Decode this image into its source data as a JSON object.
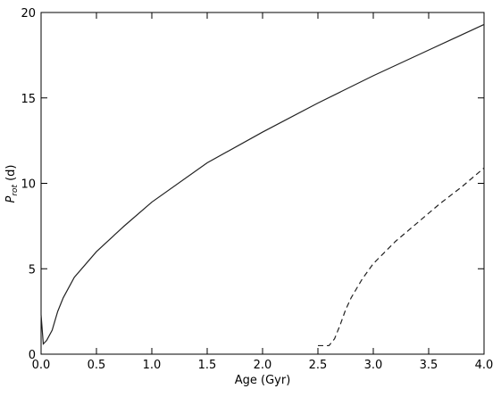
{
  "chart_data": {
    "type": "line",
    "xlabel": "Age (Gyr)",
    "ylabel": {
      "symbol": "P",
      "subscript": "rot",
      "unit": "(d)"
    },
    "xlim": [
      0,
      4
    ],
    "ylim": [
      0,
      20
    ],
    "xticks": [
      {
        "value": 0,
        "label": "0.0"
      },
      0.5,
      {
        "value": 1,
        "label": "1.0"
      },
      1.5,
      {
        "value": 2,
        "label": "2.0"
      },
      2.5,
      {
        "value": 3,
        "label": "3.0"
      },
      3.5,
      {
        "value": 4,
        "label": "4.0"
      }
    ],
    "yticks": [
      0,
      5,
      10,
      15,
      20
    ],
    "series": [
      {
        "color": "#222222",
        "dashed": false,
        "x": [
          0,
          0.02,
          0.05,
          0.1,
          0.15,
          0.2,
          0.3,
          0.5,
          0.75,
          1.0,
          1.5,
          2.0,
          2.5,
          3.0,
          3.5,
          4.0
        ],
        "values": [
          2.3,
          0.6,
          0.8,
          1.4,
          2.5,
          3.3,
          4.5,
          6.0,
          7.5,
          8.9,
          11.2,
          13.0,
          14.7,
          16.3,
          17.8,
          19.3
        ]
      },
      {
        "color": "#222222",
        "dashed": true,
        "x": [
          2.5,
          2.6,
          2.65,
          2.7,
          2.75,
          2.8,
          2.9,
          3.0,
          3.2,
          3.4,
          3.6,
          3.8,
          4.0
        ],
        "values": [
          0.5,
          0.5,
          0.9,
          1.7,
          2.6,
          3.3,
          4.4,
          5.3,
          6.6,
          7.7,
          8.8,
          9.8,
          10.9
        ]
      }
    ]
  }
}
